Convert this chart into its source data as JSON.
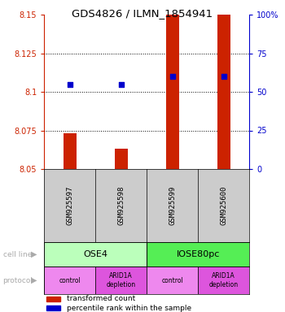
{
  "title": "GDS4826 / ILMN_1854941",
  "samples": [
    "GSM925597",
    "GSM925598",
    "GSM925599",
    "GSM925600"
  ],
  "bar_values": [
    8.073,
    8.063,
    8.15,
    8.15
  ],
  "bar_base": 8.05,
  "percentile_values": [
    55,
    55,
    60,
    60
  ],
  "ylim_left": [
    8.05,
    8.15
  ],
  "ylim_right": [
    0,
    100
  ],
  "yticks_left": [
    8.05,
    8.075,
    8.1,
    8.125,
    8.15
  ],
  "yticks_right": [
    0,
    25,
    50,
    75,
    100
  ],
  "ytick_labels_left": [
    "8.05",
    "8.075",
    "8.1",
    "8.125",
    "8.15"
  ],
  "ytick_labels_right": [
    "0",
    "25",
    "50",
    "75",
    "100%"
  ],
  "bar_color": "#cc2200",
  "dot_color": "#0000cc",
  "cell_line_labels": [
    "OSE4",
    "IOSE80pc"
  ],
  "cell_line_spans": [
    [
      0,
      2
    ],
    [
      2,
      4
    ]
  ],
  "cell_line_colors": [
    "#bbffbb",
    "#55ee55"
  ],
  "protocol_labels": [
    "control",
    "ARID1A\ndepletion",
    "control",
    "ARID1A\ndepletion"
  ],
  "protocol_colors_light": "#ee88ee",
  "protocol_colors_dark": "#dd55dd",
  "legend_bar_label": "transformed count",
  "legend_dot_label": "percentile rank within the sample",
  "cell_line_row_label": "cell line",
  "protocol_row_label": "protocol",
  "background_color": "#ffffff",
  "sample_bg_color": "#cccccc",
  "row_label_color": "#aaaaaa",
  "bar_width": 0.25,
  "dot_size": 20
}
